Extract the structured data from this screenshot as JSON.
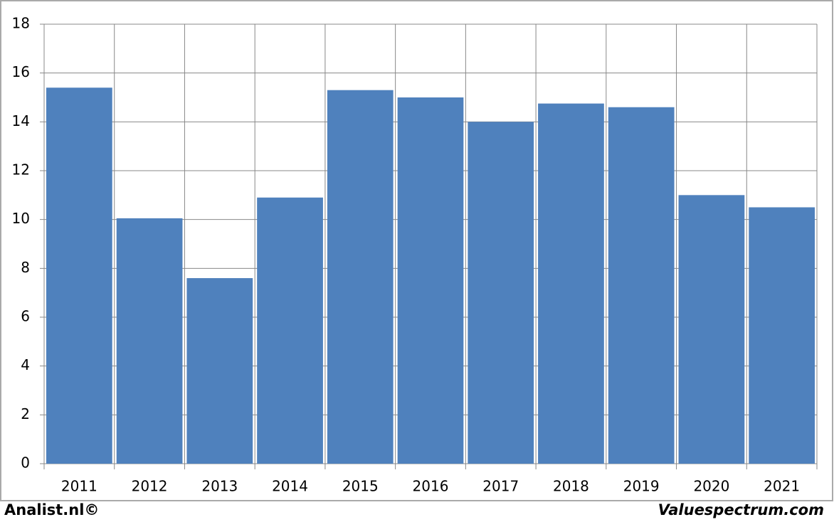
{
  "chart_data": {
    "type": "bar",
    "categories": [
      "2011",
      "2012",
      "2013",
      "2014",
      "2015",
      "2016",
      "2017",
      "2018",
      "2019",
      "2020",
      "2021"
    ],
    "values": [
      15.4,
      10.05,
      7.6,
      10.9,
      15.3,
      15.0,
      14.0,
      14.75,
      14.6,
      11.0,
      10.5
    ],
    "color": "#4f81bd",
    "ylim": [
      0,
      18
    ],
    "yticks": [
      0,
      2,
      4,
      6,
      8,
      10,
      12,
      14,
      16,
      18
    ],
    "grid": true
  },
  "footer": {
    "left": "Analist.nl©",
    "right": "Valuespectrum.com"
  }
}
